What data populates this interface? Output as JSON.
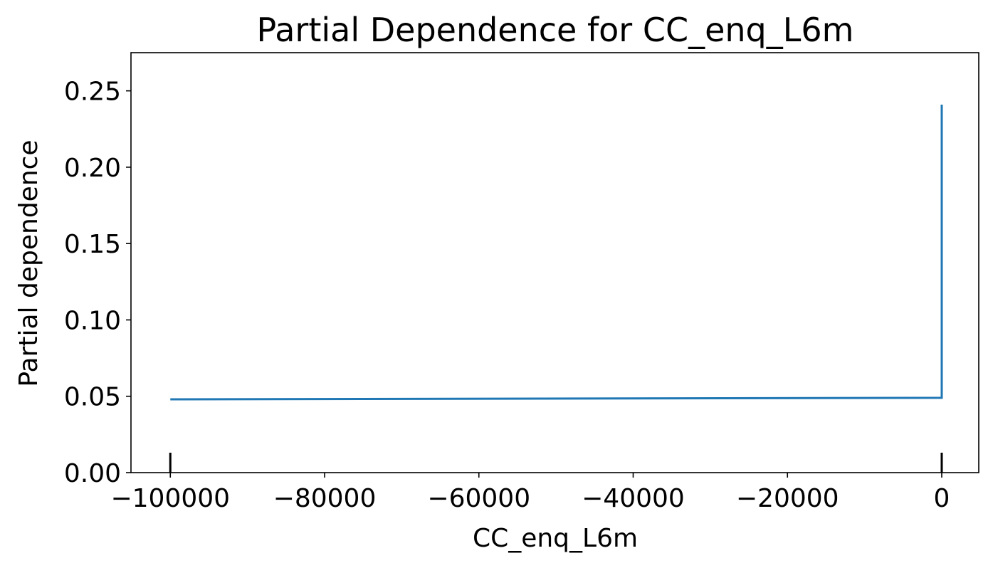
{
  "chart_data": {
    "type": "line",
    "title": "Partial Dependence for CC_enq_L6m",
    "xlabel": "CC_enq_L6m",
    "ylabel": "Partial dependence",
    "xlim": [
      -105100,
      4800
    ],
    "ylim": [
      0.0,
      0.275
    ],
    "x_ticks": [
      -100000,
      -80000,
      -60000,
      -40000,
      -20000,
      0
    ],
    "x_tick_labels": [
      "−100000",
      "−80000",
      "−60000",
      "−40000",
      "−20000",
      "0"
    ],
    "y_ticks": [
      0.0,
      0.05,
      0.1,
      0.15,
      0.2,
      0.25
    ],
    "y_tick_labels": [
      "0.00",
      "0.05",
      "0.10",
      "0.15",
      "0.20",
      "0.25"
    ],
    "grid": false,
    "series": [
      {
        "color": "#1f77b4",
        "x": [
          -100000,
          0,
          0
        ],
        "y": [
          0.048,
          0.049,
          0.241
        ]
      }
    ],
    "rug": {
      "color": "#000000",
      "x": [
        -100000,
        0
      ]
    }
  }
}
